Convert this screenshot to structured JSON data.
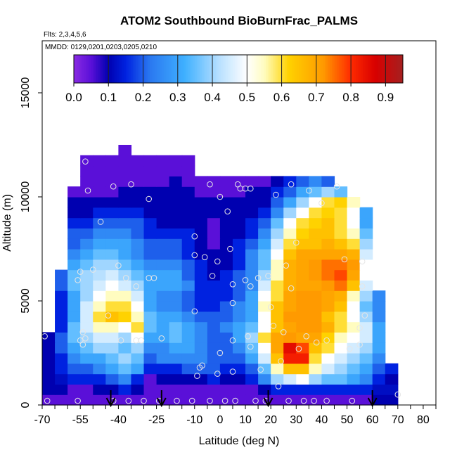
{
  "chart_data": {
    "type": "heatmap",
    "title": "ATOM2 Southbound BioBurnFrac_PALMS",
    "subtitle_flights": "Flts: 2,3,4,5,6",
    "subtitle_dates": "MMDD: 0129,0201,0203,0205,0210",
    "xlabel": "Latitude (deg N)",
    "ylabel": "Altitude (m)",
    "xlim": [
      -70,
      85
    ],
    "ylim": [
      0,
      17500
    ],
    "x_ticks": [
      -70,
      -65,
      -60,
      -55,
      -50,
      -45,
      -40,
      -35,
      -30,
      -25,
      -20,
      -15,
      -10,
      -5,
      0,
      5,
      10,
      15,
      20,
      25,
      30,
      35,
      40,
      45,
      50,
      55,
      60,
      65,
      70,
      75,
      80,
      85
    ],
    "x_tick_labels": [
      {
        "value": -70,
        "label": "-70"
      },
      {
        "value": -55,
        "label": "-55"
      },
      {
        "value": -40,
        "label": "-40"
      },
      {
        "value": -25,
        "label": "-25"
      },
      {
        "value": -10,
        "label": "-10"
      },
      {
        "value": 0,
        "label": "0"
      },
      {
        "value": 10,
        "label": "10"
      },
      {
        "value": 20,
        "label": "20"
      },
      {
        "value": 30,
        "label": "30"
      },
      {
        "value": 40,
        "label": "40"
      },
      {
        "value": 50,
        "label": "50"
      },
      {
        "value": 60,
        "label": "60"
      },
      {
        "value": 70,
        "label": "70"
      },
      {
        "value": 80,
        "label": "80"
      }
    ],
    "y_ticks": [
      {
        "value": 0,
        "label": "0"
      },
      {
        "value": 5000,
        "label": "5000"
      },
      {
        "value": 10000,
        "label": "10000"
      },
      {
        "value": 15000,
        "label": "15000"
      }
    ],
    "colorbar": {
      "range": [
        0,
        0.95
      ],
      "tick_labels": [
        "0.0",
        "0.1",
        "0.2",
        "0.3",
        "0.4",
        "0.5",
        "0.6",
        "0.7",
        "0.8",
        "0.9"
      ],
      "stops": [
        {
          "v": 0.0,
          "color": "#8a2be2"
        },
        {
          "v": 0.05,
          "color": "#5a10d8"
        },
        {
          "v": 0.1,
          "color": "#0000b0"
        },
        {
          "v": 0.15,
          "color": "#0022e0"
        },
        {
          "v": 0.22,
          "color": "#2a78f0"
        },
        {
          "v": 0.32,
          "color": "#3fb0ff"
        },
        {
          "v": 0.42,
          "color": "#b8e0ff"
        },
        {
          "v": 0.5,
          "color": "#ffffff"
        },
        {
          "v": 0.55,
          "color": "#fffcc0"
        },
        {
          "v": 0.62,
          "color": "#ffd200"
        },
        {
          "v": 0.72,
          "color": "#ff9a00"
        },
        {
          "v": 0.8,
          "color": "#ff2a00"
        },
        {
          "v": 0.87,
          "color": "#d80000"
        },
        {
          "v": 0.95,
          "color": "#a52020"
        }
      ]
    },
    "latitude_bins": [
      -67.5,
      -62.5,
      -57.5,
      -52.5,
      -47.5,
      -42.5,
      -37.5,
      -32.5,
      -27.5,
      -22.5,
      -17.5,
      -12.5,
      -7.5,
      -2.5,
      2.5,
      7.5,
      12.5,
      17.5,
      22.5,
      27.5,
      32.5,
      37.5,
      42.5,
      47.5,
      52.5,
      57.5,
      62.5,
      67.5,
      72.5
    ],
    "altitude_bins": [
      250,
      750,
      1250,
      1750,
      2250,
      2750,
      3250,
      3750,
      4250,
      4750,
      5250,
      5750,
      6250,
      6750,
      7250,
      7750,
      8250,
      8750,
      9250,
      9750,
      10250,
      10750,
      11250,
      11750,
      12250
    ],
    "bioburn_fraction": [
      [
        0.05,
        0.05,
        0.05,
        0.05,
        0.05,
        0.05,
        0.05,
        0.05,
        0.05,
        0.05,
        0.05,
        0.05,
        0.05,
        0.05,
        0.05,
        0.05,
        0.05,
        0.05,
        0.05,
        0.05,
        0.05,
        0.05,
        0.05,
        0.05,
        0.05,
        0.05,
        0.1,
        0.1,
        null
      ],
      [
        0.1,
        0.1,
        0.05,
        0.05,
        0.1,
        0.1,
        0.15,
        0.1,
        0.05,
        0.05,
        0.05,
        0.05,
        0.05,
        0.05,
        0.05,
        0.05,
        0.05,
        0.1,
        0.15,
        0.15,
        0.15,
        0.15,
        0.15,
        0.15,
        0.15,
        0.15,
        0.12,
        0.12,
        null
      ],
      [
        0.1,
        0.12,
        0.15,
        0.15,
        0.15,
        0.2,
        0.25,
        0.15,
        0.05,
        0.1,
        0.1,
        0.1,
        0.1,
        0.15,
        0.1,
        0.1,
        0.15,
        0.25,
        0.4,
        0.45,
        0.5,
        0.4,
        0.35,
        0.35,
        0.3,
        0.25,
        0.15,
        0.1,
        null
      ],
      [
        0.1,
        0.15,
        0.2,
        0.2,
        0.25,
        0.3,
        0.35,
        0.3,
        0.15,
        0.15,
        0.15,
        0.2,
        0.2,
        0.2,
        0.15,
        0.15,
        0.2,
        0.35,
        0.55,
        0.65,
        0.65,
        0.55,
        0.45,
        0.4,
        0.35,
        0.3,
        0.2,
        0.15,
        null
      ],
      [
        0.1,
        0.15,
        0.25,
        0.3,
        0.3,
        0.35,
        0.4,
        0.35,
        0.2,
        0.25,
        0.25,
        0.25,
        0.25,
        0.2,
        0.2,
        0.2,
        0.3,
        0.45,
        0.65,
        0.82,
        0.82,
        0.6,
        0.5,
        0.45,
        0.4,
        0.35,
        0.25,
        null,
        null
      ],
      [
        0.1,
        0.2,
        0.3,
        0.35,
        0.4,
        0.4,
        0.35,
        0.4,
        0.25,
        0.25,
        0.3,
        0.3,
        0.25,
        0.2,
        0.2,
        0.25,
        0.35,
        0.5,
        0.7,
        0.85,
        0.78,
        0.65,
        0.6,
        0.5,
        0.45,
        0.4,
        0.3,
        null,
        null
      ],
      [
        0.1,
        0.2,
        0.35,
        0.4,
        0.45,
        0.45,
        0.4,
        0.5,
        0.3,
        0.3,
        0.35,
        0.3,
        0.25,
        0.2,
        0.2,
        0.3,
        0.4,
        0.6,
        0.7,
        0.72,
        0.7,
        0.7,
        0.62,
        0.55,
        0.5,
        0.45,
        0.3,
        null,
        null
      ],
      [
        null,
        0.15,
        0.35,
        0.45,
        0.55,
        0.55,
        0.5,
        0.6,
        0.35,
        0.3,
        0.35,
        0.3,
        0.25,
        0.2,
        0.25,
        0.3,
        0.35,
        0.5,
        0.65,
        0.7,
        0.72,
        0.72,
        0.68,
        0.6,
        0.55,
        0.45,
        0.3,
        null,
        null
      ],
      [
        null,
        0.15,
        0.3,
        0.45,
        0.6,
        0.65,
        0.62,
        0.55,
        0.35,
        0.3,
        0.3,
        0.25,
        0.2,
        0.2,
        0.2,
        0.25,
        0.3,
        0.5,
        0.65,
        0.72,
        0.72,
        0.72,
        0.65,
        0.6,
        0.5,
        0.4,
        0.25,
        null,
        null
      ],
      [
        null,
        0.15,
        0.3,
        0.45,
        0.55,
        0.6,
        0.6,
        0.5,
        0.3,
        0.25,
        0.25,
        0.2,
        0.15,
        0.15,
        0.2,
        0.25,
        0.3,
        0.55,
        0.65,
        0.7,
        0.72,
        0.72,
        0.7,
        0.65,
        0.5,
        0.35,
        0.25,
        null,
        null
      ],
      [
        null,
        0.15,
        0.3,
        0.4,
        0.5,
        0.55,
        0.55,
        0.45,
        0.3,
        0.25,
        0.25,
        0.2,
        0.15,
        0.15,
        0.15,
        0.2,
        0.3,
        0.5,
        0.6,
        0.7,
        0.72,
        0.72,
        0.7,
        0.68,
        0.55,
        0.4,
        0.25,
        null,
        null
      ],
      [
        null,
        0.2,
        0.35,
        0.4,
        0.45,
        0.5,
        0.45,
        0.4,
        0.3,
        0.3,
        0.3,
        0.25,
        0.15,
        0.15,
        0.15,
        0.2,
        0.25,
        0.45,
        0.6,
        0.68,
        0.7,
        0.7,
        0.72,
        0.75,
        0.65,
        0.45,
        null,
        null,
        null
      ],
      [
        null,
        0.2,
        0.35,
        0.4,
        0.42,
        0.45,
        0.4,
        0.35,
        0.3,
        0.3,
        0.3,
        0.2,
        0.15,
        0.1,
        0.15,
        0.2,
        0.25,
        0.4,
        0.55,
        0.68,
        0.7,
        0.72,
        0.75,
        0.78,
        0.7,
        0.5,
        null,
        null,
        null
      ],
      [
        null,
        null,
        0.3,
        0.35,
        0.4,
        0.4,
        0.35,
        0.3,
        0.25,
        0.25,
        0.25,
        0.2,
        0.15,
        0.1,
        0.1,
        0.15,
        0.25,
        0.35,
        0.55,
        0.68,
        0.7,
        0.72,
        0.75,
        0.75,
        0.72,
        0.5,
        null,
        null,
        null
      ],
      [
        null,
        null,
        0.25,
        0.3,
        0.35,
        0.35,
        0.3,
        0.25,
        0.2,
        0.2,
        0.2,
        0.15,
        0.1,
        0.1,
        0.1,
        0.15,
        0.25,
        0.35,
        0.5,
        0.65,
        0.7,
        0.7,
        0.7,
        0.7,
        0.68,
        0.45,
        null,
        null,
        null
      ],
      [
        null,
        null,
        0.2,
        0.25,
        0.3,
        0.3,
        0.3,
        0.25,
        0.2,
        0.2,
        0.2,
        0.15,
        0.1,
        0.05,
        0.1,
        0.15,
        0.2,
        0.3,
        0.45,
        0.6,
        0.65,
        0.65,
        0.68,
        0.65,
        0.6,
        0.4,
        null,
        null,
        null
      ],
      [
        null,
        null,
        0.2,
        0.2,
        0.25,
        0.25,
        0.25,
        0.2,
        0.15,
        0.15,
        0.15,
        0.15,
        0.1,
        0.05,
        0.1,
        0.1,
        0.15,
        0.25,
        0.4,
        0.55,
        0.62,
        0.65,
        0.65,
        0.6,
        0.55,
        0.35,
        null,
        null,
        null
      ],
      [
        null,
        null,
        0.15,
        0.15,
        0.2,
        0.2,
        0.2,
        0.2,
        0.15,
        0.1,
        0.1,
        0.1,
        0.1,
        0.05,
        0.1,
        0.1,
        0.15,
        0.2,
        0.35,
        0.5,
        0.6,
        0.62,
        0.65,
        0.6,
        0.5,
        0.3,
        null,
        null,
        null
      ],
      [
        null,
        null,
        0.1,
        0.1,
        0.15,
        0.15,
        0.15,
        0.15,
        0.1,
        0.1,
        0.1,
        0.1,
        0.1,
        0.1,
        0.1,
        0.1,
        0.1,
        0.15,
        0.25,
        0.4,
        0.5,
        0.6,
        0.62,
        0.6,
        0.5,
        0.3,
        null,
        null,
        null
      ],
      [
        null,
        null,
        0.1,
        0.1,
        0.1,
        0.1,
        0.1,
        0.1,
        0.1,
        0.1,
        0.1,
        0.1,
        0.1,
        0.1,
        0.1,
        0.1,
        0.1,
        0.1,
        0.2,
        0.3,
        0.4,
        0.5,
        0.6,
        0.62,
        0.55,
        null,
        null,
        null,
        null
      ],
      [
        null,
        null,
        0.05,
        0.05,
        0.05,
        0.05,
        0.1,
        0.1,
        0.1,
        0.1,
        0.1,
        0.1,
        0.05,
        0.05,
        0.05,
        0.05,
        0.1,
        0.1,
        0.15,
        0.2,
        0.3,
        0.35,
        0.4,
        0.35,
        null,
        null,
        null,
        null,
        null
      ],
      [
        null,
        null,
        null,
        0.05,
        0.05,
        0.05,
        0.05,
        0.05,
        0.05,
        0.05,
        0.1,
        0.05,
        0.05,
        0.05,
        0.05,
        0.05,
        0.05,
        0.05,
        0.1,
        0.15,
        0.2,
        0.25,
        0.2,
        null,
        null,
        null,
        null,
        null,
        null
      ],
      [
        null,
        null,
        null,
        0.05,
        0.05,
        0.05,
        0.05,
        0.05,
        0.05,
        0.05,
        0.05,
        0.05,
        null,
        null,
        null,
        null,
        null,
        null,
        null,
        null,
        null,
        null,
        null,
        null,
        null,
        null,
        null,
        null,
        null
      ],
      [
        null,
        null,
        null,
        0.05,
        0.05,
        0.05,
        0.05,
        0.05,
        0.05,
        0.05,
        0.05,
        0.05,
        null,
        null,
        null,
        null,
        null,
        null,
        null,
        null,
        null,
        null,
        null,
        null,
        null,
        null,
        null,
        null,
        null
      ],
      [
        null,
        null,
        null,
        null,
        null,
        null,
        0.05,
        null,
        null,
        null,
        null,
        null,
        null,
        null,
        null,
        null,
        null,
        null,
        null,
        null,
        null,
        null,
        null,
        null,
        null,
        null,
        null,
        null,
        null
      ]
    ],
    "samples": [
      {
        "lat": -69,
        "alt": 3300
      },
      {
        "lat": -68,
        "alt": 200
      },
      {
        "lat": -56,
        "alt": 200
      },
      {
        "lat": -55,
        "alt": 3100
      },
      {
        "lat": -54,
        "alt": 3500
      },
      {
        "lat": -54,
        "alt": 2900
      },
      {
        "lat": -53,
        "alt": 3200
      },
      {
        "lat": -56,
        "alt": 6000
      },
      {
        "lat": -55,
        "alt": 6400
      },
      {
        "lat": -52,
        "alt": 10300
      },
      {
        "lat": -53,
        "alt": 11700
      },
      {
        "lat": -50,
        "alt": 6500
      },
      {
        "lat": -47,
        "alt": 8800
      },
      {
        "lat": -44,
        "alt": 4300
      },
      {
        "lat": -42,
        "alt": 200
      },
      {
        "lat": -42,
        "alt": 10500
      },
      {
        "lat": -40,
        "alt": 6700
      },
      {
        "lat": -39,
        "alt": 3100
      },
      {
        "lat": -37,
        "alt": 6100
      },
      {
        "lat": -36,
        "alt": 200
      },
      {
        "lat": -35,
        "alt": 10600
      },
      {
        "lat": -33,
        "alt": 5700
      },
      {
        "lat": -33,
        "alt": 3100
      },
      {
        "lat": -31,
        "alt": 3100
      },
      {
        "lat": -30,
        "alt": 200
      },
      {
        "lat": -28,
        "alt": 9900
      },
      {
        "lat": -28,
        "alt": 6100
      },
      {
        "lat": -26,
        "alt": 6100
      },
      {
        "lat": -24,
        "alt": 200
      },
      {
        "lat": -23,
        "alt": 3200
      },
      {
        "lat": -17,
        "alt": 200
      },
      {
        "lat": -11,
        "alt": 200
      },
      {
        "lat": -10,
        "alt": 7200
      },
      {
        "lat": -10,
        "alt": 8100
      },
      {
        "lat": -10,
        "alt": 4500
      },
      {
        "lat": -9,
        "alt": 1400
      },
      {
        "lat": -8,
        "alt": 1800
      },
      {
        "lat": -7,
        "alt": 1900
      },
      {
        "lat": -6,
        "alt": 7100
      },
      {
        "lat": -4,
        "alt": 10600
      },
      {
        "lat": -4,
        "alt": 200
      },
      {
        "lat": -3,
        "alt": 6200
      },
      {
        "lat": -1,
        "alt": 6900
      },
      {
        "lat": -1,
        "alt": 1500
      },
      {
        "lat": 0,
        "alt": 2500
      },
      {
        "lat": 0,
        "alt": 10000
      },
      {
        "lat": 2,
        "alt": 200
      },
      {
        "lat": 3,
        "alt": 9300
      },
      {
        "lat": 4,
        "alt": 7500
      },
      {
        "lat": 5,
        "alt": 5800
      },
      {
        "lat": 5,
        "alt": 3100
      },
      {
        "lat": 5,
        "alt": 4900
      },
      {
        "lat": 5,
        "alt": 1600
      },
      {
        "lat": 6,
        "alt": 200
      },
      {
        "lat": 7,
        "alt": 10600
      },
      {
        "lat": 8,
        "alt": 10400
      },
      {
        "lat": 10,
        "alt": 10400
      },
      {
        "lat": 10,
        "alt": 6000
      },
      {
        "lat": 11,
        "alt": 3300
      },
      {
        "lat": 12,
        "alt": 5700
      },
      {
        "lat": 12,
        "alt": 10400
      },
      {
        "lat": 12,
        "alt": 2800
      },
      {
        "lat": 14,
        "alt": 200
      },
      {
        "lat": 15,
        "alt": 6100
      },
      {
        "lat": 16,
        "alt": 1700
      },
      {
        "lat": 18,
        "alt": 200
      },
      {
        "lat": 19,
        "alt": 6200
      },
      {
        "lat": 20,
        "alt": 4700
      },
      {
        "lat": 21,
        "alt": 3800
      },
      {
        "lat": 22,
        "alt": 10100
      },
      {
        "lat": 23,
        "alt": 900
      },
      {
        "lat": 24,
        "alt": 2100
      },
      {
        "lat": 25,
        "alt": 3500
      },
      {
        "lat": 26,
        "alt": 6700
      },
      {
        "lat": 27,
        "alt": 200
      },
      {
        "lat": 28,
        "alt": 10600
      },
      {
        "lat": 28,
        "alt": 5600
      },
      {
        "lat": 30,
        "alt": 7800
      },
      {
        "lat": 31,
        "alt": 2700
      },
      {
        "lat": 33,
        "alt": 200
      },
      {
        "lat": 34,
        "alt": 3300
      },
      {
        "lat": 35,
        "alt": 10300
      },
      {
        "lat": 37,
        "alt": 200
      },
      {
        "lat": 38,
        "alt": 3000
      },
      {
        "lat": 40,
        "alt": 9700
      },
      {
        "lat": 42,
        "alt": 3100
      },
      {
        "lat": 42,
        "alt": 200
      },
      {
        "lat": 46,
        "alt": 10500
      },
      {
        "lat": 49,
        "alt": 7000
      },
      {
        "lat": 51,
        "alt": 2700
      },
      {
        "lat": 52,
        "alt": 200
      },
      {
        "lat": 55,
        "alt": 3700
      },
      {
        "lat": 55,
        "alt": 2900
      },
      {
        "lat": 56,
        "alt": 5700
      },
      {
        "lat": 56,
        "alt": 6900
      },
      {
        "lat": 57,
        "alt": 4300
      },
      {
        "lat": 70,
        "alt": 500
      }
    ],
    "arrows": [
      -43,
      -23,
      19,
      60
    ]
  }
}
